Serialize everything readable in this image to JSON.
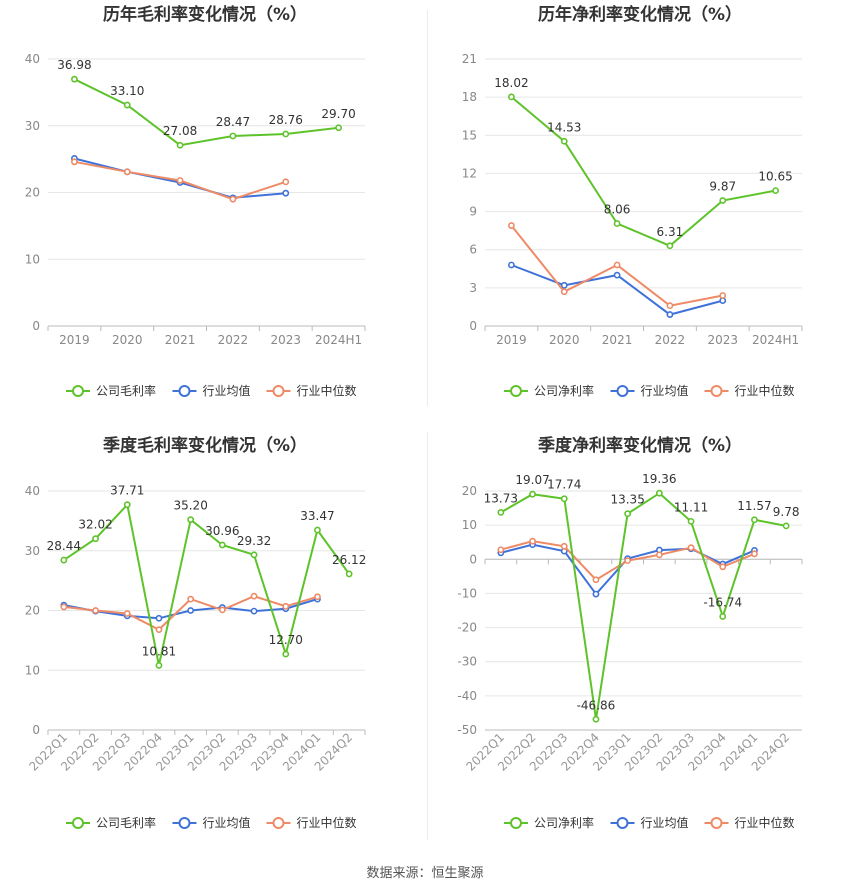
{
  "colors": {
    "company": "#5ec32a",
    "industry_avg": "#3f72d8",
    "industry_median": "#ee8a66",
    "grid": "#e6e6e6",
    "axis_text": "#888888",
    "label_text": "#333333"
  },
  "source_text": "数据来源：恒生聚源",
  "chart_data": [
    {
      "type": "line",
      "title": "历年毛利率变化情况（%）",
      "categories": [
        "2019",
        "2020",
        "2021",
        "2022",
        "2023",
        "2024H1"
      ],
      "ylim": [
        0,
        40
      ],
      "yticks": [
        0,
        10,
        20,
        30,
        40
      ],
      "rotate_xticks": false,
      "series": [
        {
          "name": "公司毛利率",
          "key": "company",
          "values": [
            36.98,
            33.1,
            27.08,
            28.47,
            28.76,
            29.7
          ],
          "labels": [
            "36.98",
            "33.10",
            "27.08",
            "28.47",
            "28.76",
            "29.70"
          ]
        },
        {
          "name": "行业均值",
          "key": "industry_avg",
          "values": [
            25.1,
            23.1,
            21.5,
            19.2,
            19.9,
            null
          ]
        },
        {
          "name": "行业中位数",
          "key": "industry_median",
          "values": [
            24.6,
            23.1,
            21.8,
            19.0,
            21.6,
            null
          ]
        }
      ]
    },
    {
      "type": "line",
      "title": "历年净利率变化情况（%）",
      "categories": [
        "2019",
        "2020",
        "2021",
        "2022",
        "2023",
        "2024H1"
      ],
      "ylim": [
        0,
        21
      ],
      "yticks": [
        0,
        3,
        6,
        9,
        12,
        15,
        18,
        21
      ],
      "rotate_xticks": false,
      "series": [
        {
          "name": "公司净利率",
          "key": "company",
          "values": [
            18.02,
            14.53,
            8.06,
            6.31,
            9.87,
            10.65
          ],
          "labels": [
            "18.02",
            "14.53",
            "8.06",
            "6.31",
            "9.87",
            "10.65"
          ]
        },
        {
          "name": "行业均值",
          "key": "industry_avg",
          "values": [
            4.8,
            3.2,
            4.0,
            0.9,
            2.0,
            null
          ]
        },
        {
          "name": "行业中位数",
          "key": "industry_median",
          "values": [
            7.9,
            2.7,
            4.8,
            1.6,
            2.4,
            null
          ]
        }
      ]
    },
    {
      "type": "line",
      "title": "季度毛利率变化情况（%）",
      "categories": [
        "2022Q1",
        "2022Q2",
        "2022Q3",
        "2022Q4",
        "2023Q1",
        "2023Q2",
        "2023Q3",
        "2023Q4",
        "2024Q1",
        "2024Q2"
      ],
      "ylim": [
        0,
        40
      ],
      "yticks": [
        0,
        10,
        20,
        30,
        40
      ],
      "rotate_xticks": true,
      "series": [
        {
          "name": "公司毛利率",
          "key": "company",
          "values": [
            28.44,
            32.02,
            37.71,
            10.81,
            35.2,
            30.96,
            29.32,
            12.7,
            33.47,
            26.12
          ],
          "labels": [
            "28.44",
            "32.02",
            "37.71",
            "10.81",
            "35.20",
            "30.96",
            "29.32",
            "12.70",
            "33.47",
            "26.12"
          ]
        },
        {
          "name": "行业均值",
          "key": "industry_avg",
          "values": [
            20.9,
            19.9,
            19.1,
            18.7,
            20.0,
            20.5,
            19.9,
            20.3,
            21.9,
            null
          ]
        },
        {
          "name": "行业中位数",
          "key": "industry_median",
          "values": [
            20.6,
            20.0,
            19.5,
            16.8,
            21.9,
            20.1,
            22.4,
            20.7,
            22.3,
            null
          ]
        }
      ]
    },
    {
      "type": "line",
      "title": "季度净利率变化情况（%）",
      "categories": [
        "2022Q1",
        "2022Q2",
        "2022Q3",
        "2022Q4",
        "2023Q1",
        "2023Q2",
        "2023Q3",
        "2023Q4",
        "2024Q1",
        "2024Q2"
      ],
      "ylim": [
        -50,
        20
      ],
      "yticks": [
        -50,
        -40,
        -30,
        -20,
        -10,
        0,
        10,
        20
      ],
      "rotate_xticks": true,
      "series": [
        {
          "name": "公司净利率",
          "key": "company",
          "values": [
            13.73,
            19.07,
            17.74,
            -46.86,
            13.35,
            19.36,
            11.11,
            -16.74,
            11.57,
            9.78
          ],
          "labels": [
            "13.73",
            "19.07",
            "17.74",
            "-46.86",
            "13.35",
            "19.36",
            "11.11",
            "-16.74",
            "11.57",
            "9.78"
          ]
        },
        {
          "name": "行业均值",
          "key": "industry_avg",
          "values": [
            1.9,
            4.3,
            2.4,
            -10.2,
            0.2,
            2.7,
            3.1,
            -1.4,
            2.6,
            null
          ]
        },
        {
          "name": "行业中位数",
          "key": "industry_median",
          "values": [
            2.8,
            5.3,
            3.8,
            -6.0,
            -0.4,
            1.3,
            3.4,
            -2.2,
            1.6,
            null
          ]
        }
      ]
    }
  ]
}
